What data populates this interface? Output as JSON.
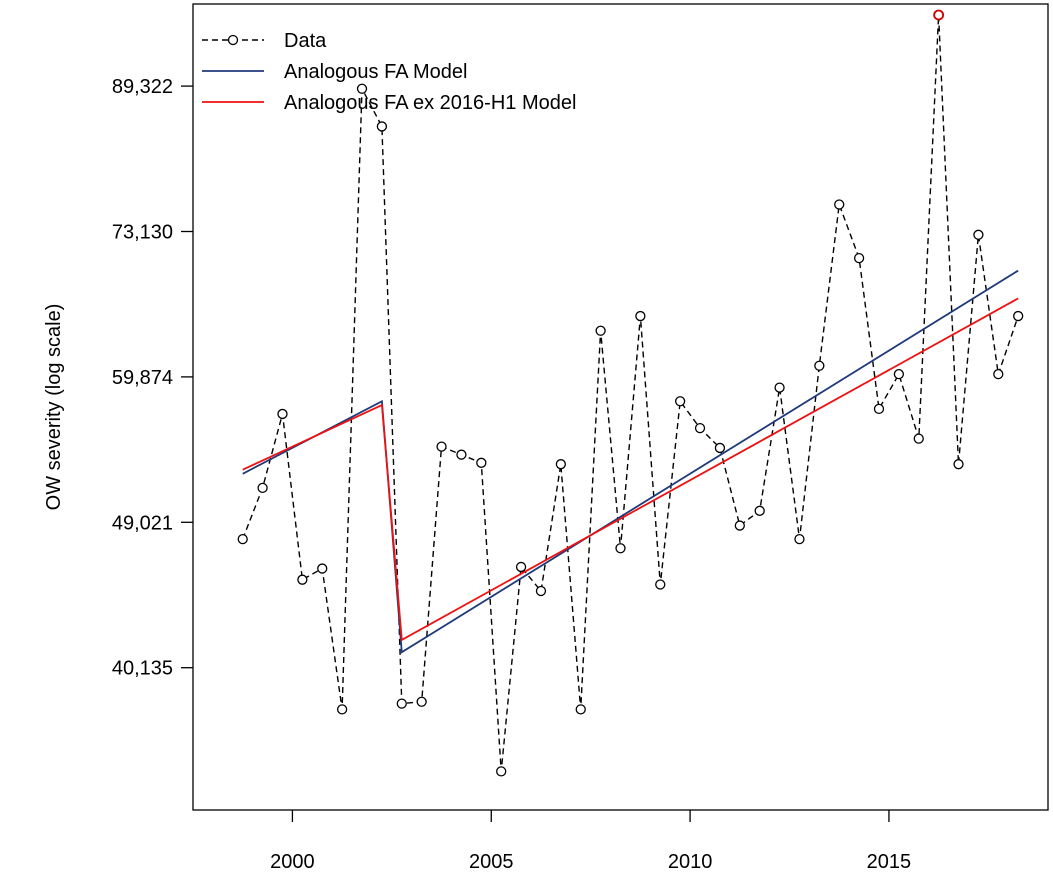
{
  "chart_data": {
    "type": "line",
    "title": "",
    "xlabel": "",
    "ylabel": "OW severity (log scale)",
    "y_scale": "log",
    "xlim": [
      1997.5,
      2019.0
    ],
    "ylim": [
      33000,
      100000
    ],
    "x_ticks": [
      2000,
      2005,
      2010,
      2015
    ],
    "x_tick_labels": [
      "2000",
      "2005",
      "2010",
      "2015"
    ],
    "y_ticks": [
      40135,
      49021,
      59874,
      73130,
      89322
    ],
    "y_tick_labels": [
      "40,135",
      "49,021",
      "59,874",
      "73,130",
      "89,322"
    ],
    "grid": false,
    "legend_position": "top-left",
    "colors": {
      "data": "#000000",
      "highlight": "#cc0000",
      "fa_model": "#1f3a7a",
      "fa_ex_model": "#ee1111"
    },
    "series": [
      {
        "name": "Data",
        "style": "dashed-with-open-circles",
        "x": [
          1998.75,
          1999.25,
          1999.75,
          2000.25,
          2000.75,
          2001.25,
          2001.75,
          2002.25,
          2002.75,
          2003.25,
          2003.75,
          2004.25,
          2004.75,
          2005.25,
          2005.75,
          2006.25,
          2006.75,
          2007.25,
          2007.75,
          2008.25,
          2008.75,
          2009.25,
          2009.75,
          2010.25,
          2010.75,
          2011.25,
          2011.75,
          2012.25,
          2012.75,
          2013.25,
          2013.75,
          2014.25,
          2014.75,
          2015.25,
          2015.75,
          2016.25,
          2016.75,
          2017.25,
          2017.75,
          2018.25
        ],
        "values": [
          47900,
          51400,
          56900,
          45300,
          46000,
          37900,
          89000,
          84500,
          38200,
          38300,
          54400,
          53800,
          53200,
          34800,
          46100,
          44600,
          53100,
          37900,
          63800,
          47300,
          65100,
          45000,
          57900,
          55800,
          54300,
          48800,
          49800,
          59000,
          47900,
          60800,
          75900,
          70500,
          57300,
          60100,
          55000,
          98500,
          53100,
          72800,
          60100,
          65100
        ],
        "highlight_index": 35
      },
      {
        "name": "Analogous FA Model",
        "x": [
          1998.75,
          2002.25,
          2002.75,
          2018.25
        ],
        "values": [
          52400,
          57900,
          41000,
          69300
        ]
      },
      {
        "name": "Analogous FA ex 2016-H1 Model",
        "x": [
          1998.75,
          2002.25,
          2002.75,
          2018.25
        ],
        "values": [
          52700,
          57600,
          41700,
          66700
        ]
      }
    ]
  }
}
